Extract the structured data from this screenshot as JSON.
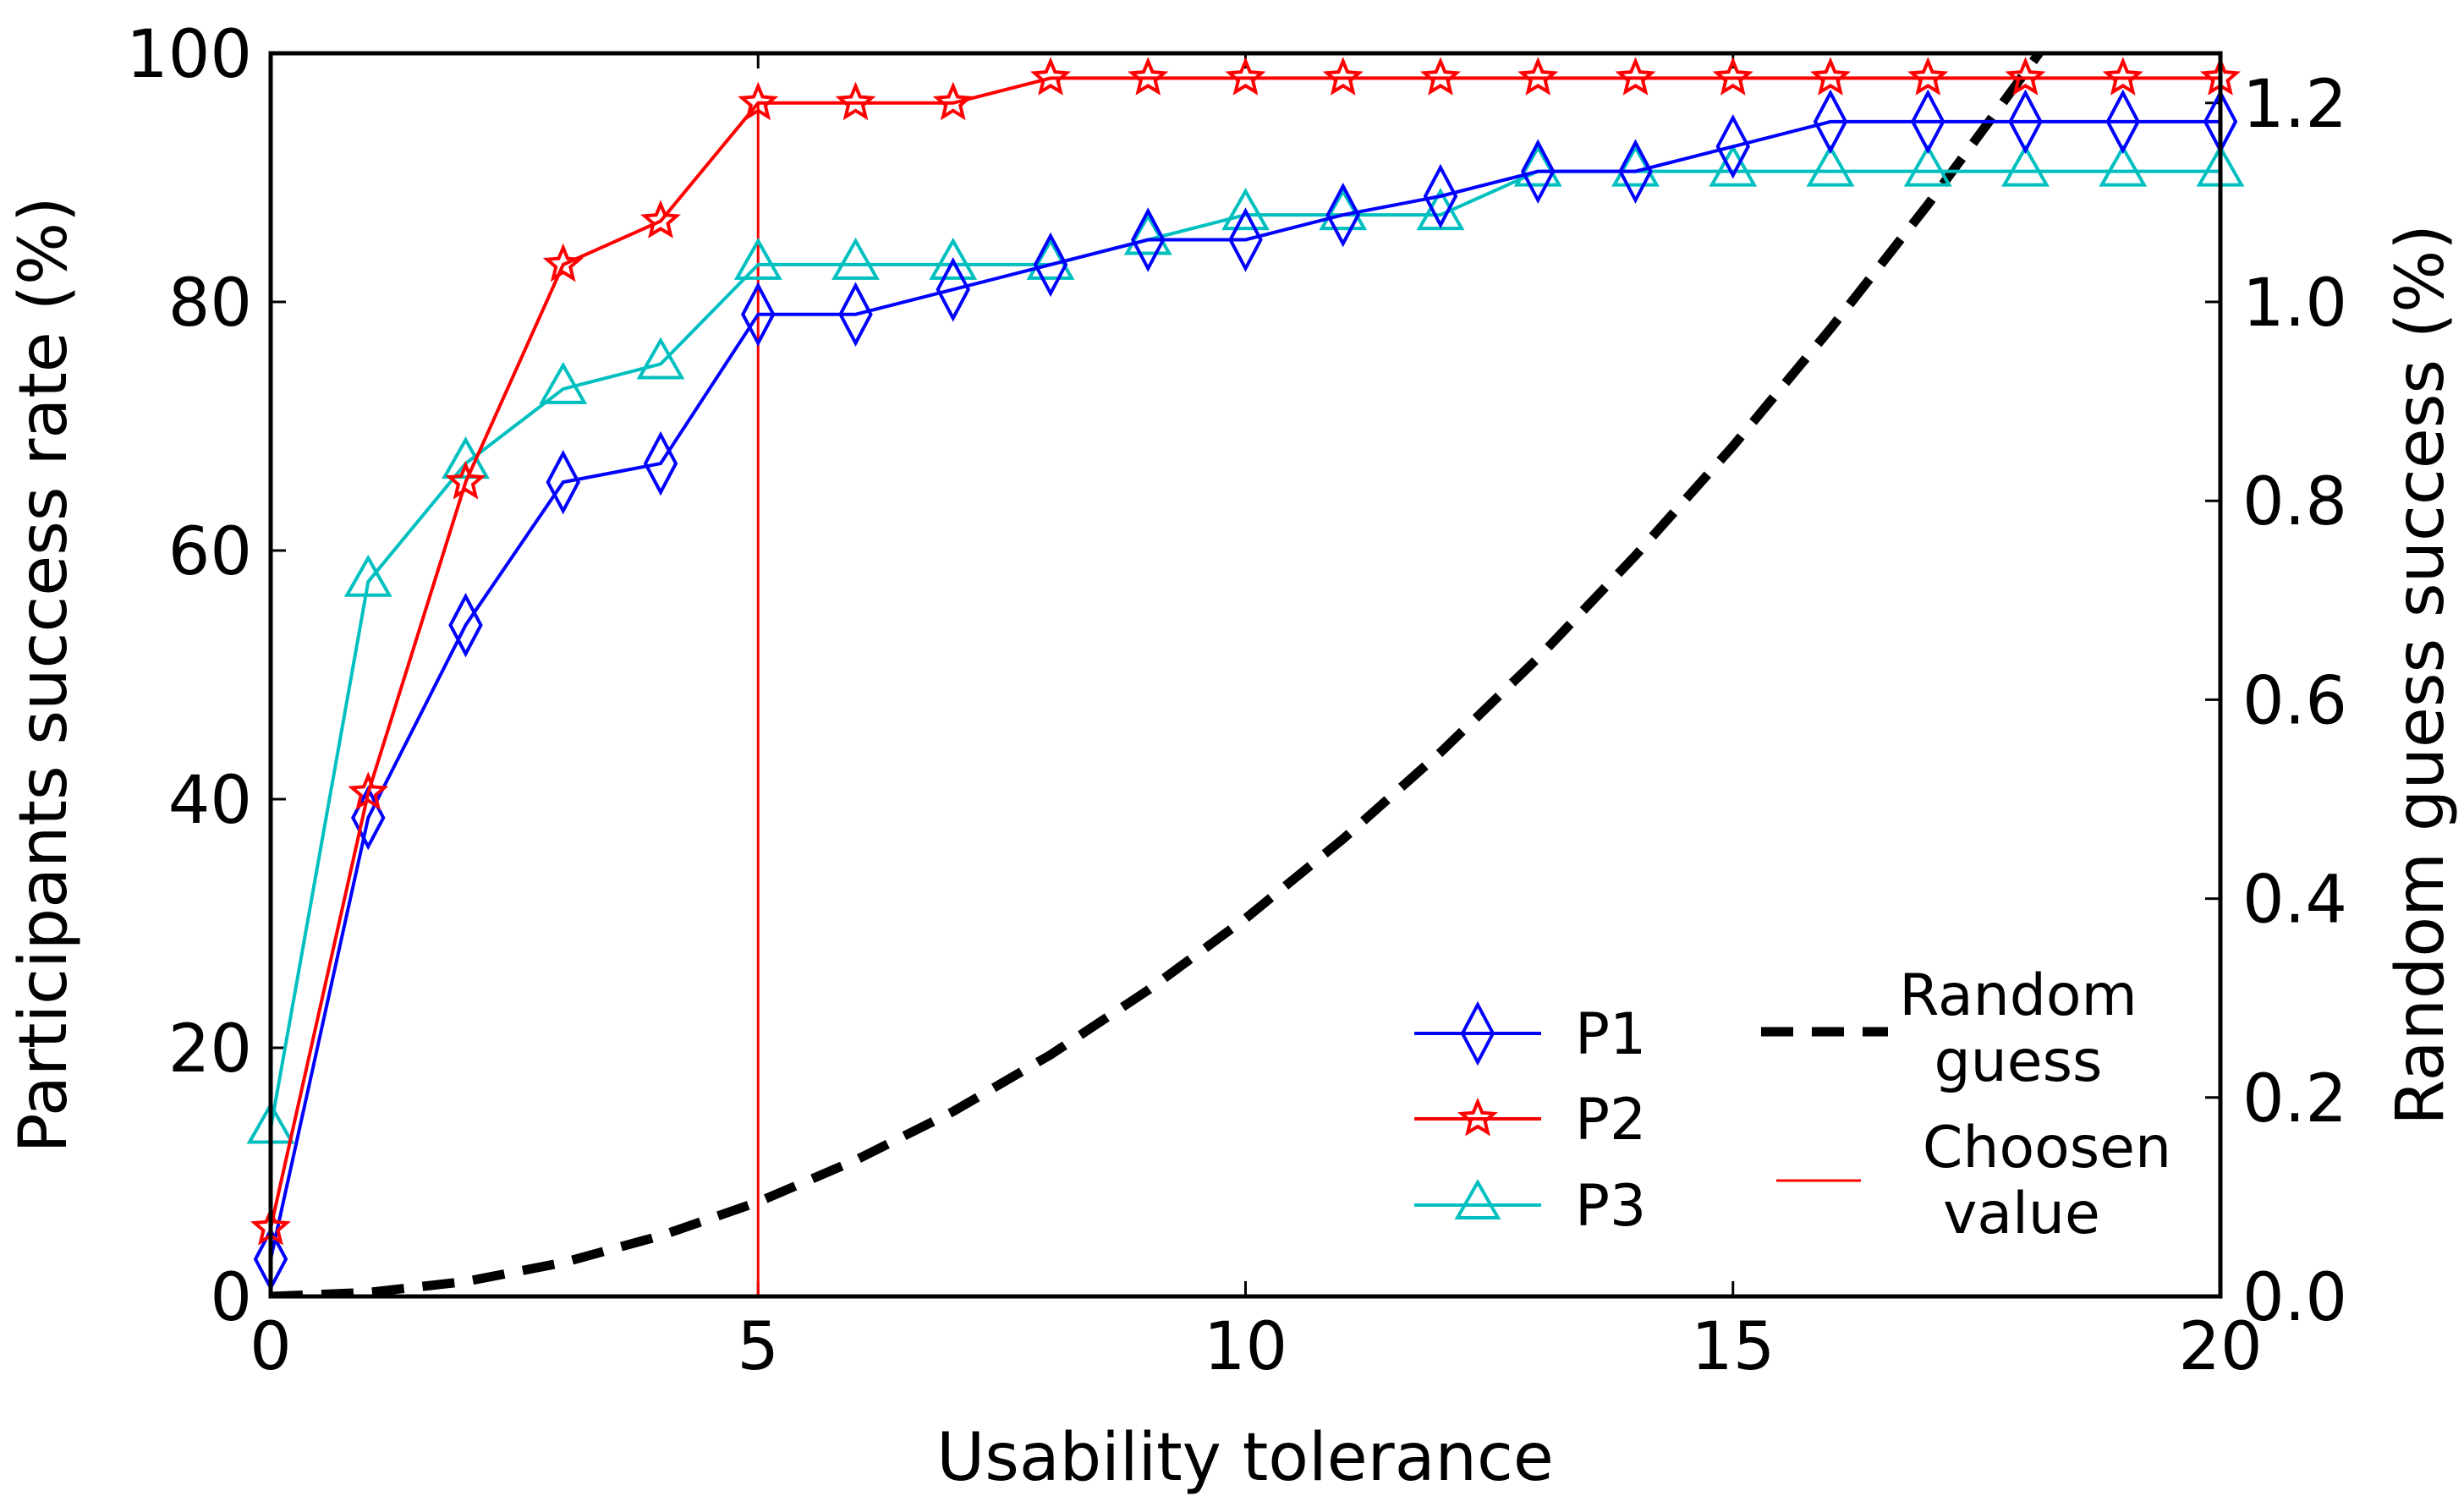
{
  "chart_data": {
    "type": "line",
    "title": "",
    "xlabel": "Usability tolerance",
    "ylabel": "Participants success rate (%)",
    "y2label": "Random guess success (%)",
    "xlim": [
      0,
      20
    ],
    "ylim": [
      0,
      100
    ],
    "y2lim": [
      0,
      1.25
    ],
    "xticks": [
      "0",
      "5",
      "10",
      "15",
      "20"
    ],
    "yticks": [
      "0",
      "20",
      "40",
      "60",
      "80",
      "100"
    ],
    "y2ticks": [
      "0.0",
      "0.2",
      "0.4",
      "0.6",
      "0.8",
      "1.0",
      "1.2"
    ],
    "x": [
      0,
      1,
      2,
      3,
      4,
      5,
      6,
      7,
      8,
      9,
      10,
      11,
      12,
      13,
      14,
      15,
      16,
      17,
      18,
      19,
      20
    ],
    "series": [
      {
        "name": "P1",
        "color": "#0000ff",
        "marker": "diamond",
        "axis": "left",
        "values": [
          3,
          38.5,
          54,
          65.5,
          67,
          79,
          79,
          81,
          83,
          85,
          85,
          87,
          88.5,
          90.5,
          90.5,
          92.5,
          94.5,
          94.5,
          94.5,
          94.5,
          94.5
        ]
      },
      {
        "name": "P2",
        "color": "#ff0000",
        "marker": "star",
        "axis": "left",
        "values": [
          5.5,
          40.5,
          65.5,
          83,
          86.5,
          96,
          96,
          96,
          98,
          98,
          98,
          98,
          98,
          98,
          98,
          98,
          98,
          98,
          98,
          98,
          98
        ]
      },
      {
        "name": "P3",
        "color": "#00bfbf",
        "marker": "triangle",
        "axis": "left",
        "values": [
          13.5,
          57.5,
          67,
          73,
          75,
          83,
          83,
          83,
          83,
          85,
          87,
          87,
          87,
          90.5,
          90.5,
          90.5,
          90.5,
          90.5,
          90.5,
          90.5,
          90.5
        ]
      },
      {
        "name": "Random guess",
        "color": "#000000",
        "style": "dashed",
        "axis": "right",
        "x": [
          0,
          1,
          2,
          3,
          4,
          5,
          6,
          7,
          8,
          9,
          10,
          11,
          12,
          13,
          14,
          15,
          16,
          17,
          18,
          18.3
        ],
        "values": [
          0,
          0.004,
          0.015,
          0.034,
          0.061,
          0.095,
          0.137,
          0.186,
          0.243,
          0.308,
          0.38,
          0.46,
          0.547,
          0.642,
          0.745,
          0.855,
          0.973,
          1.098,
          1.231,
          1.272
        ]
      }
    ],
    "chosen_value": {
      "label": "Choosen value",
      "x": 5,
      "color": "#ff0000"
    },
    "legend": {
      "placement": "lower-right",
      "entries": [
        "P1",
        "P2",
        "P3",
        "Random guess",
        "Choosen value"
      ],
      "lines": {
        "random": [
          "Random",
          "guess"
        ],
        "chosen": [
          "Choosen",
          "value"
        ]
      }
    }
  }
}
